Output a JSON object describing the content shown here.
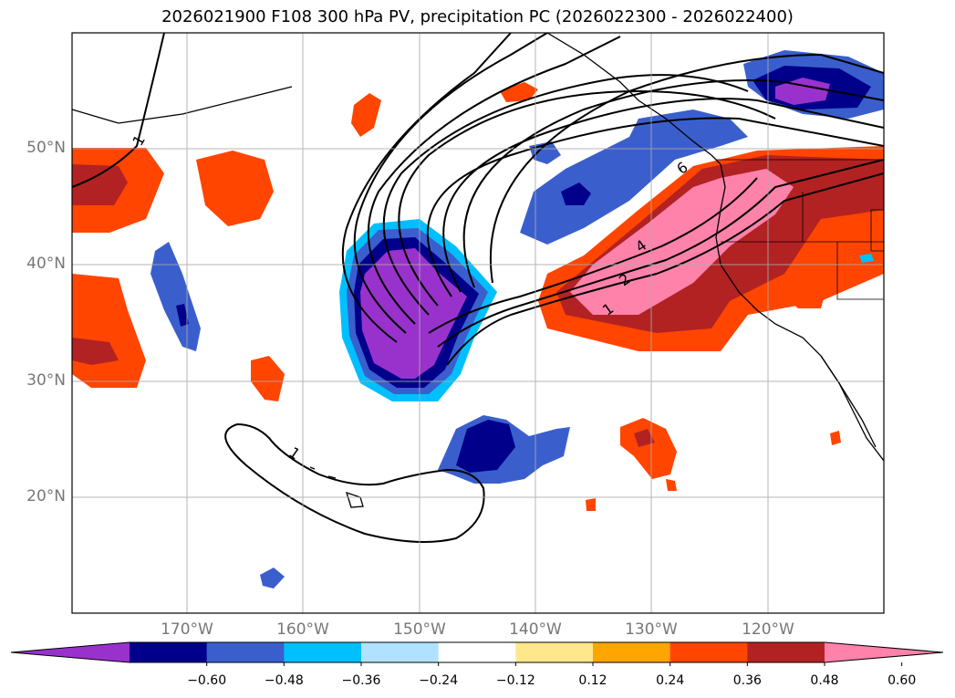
{
  "title": "2026021900 F108 300 hPa PV, precipitation PC (2026022300 - 2026022400)",
  "map": {
    "extent": {
      "lon_min": -180,
      "lon_max": -110,
      "lat_min": 10,
      "lat_max": 60
    },
    "gridlines": true,
    "lat_labels": [
      "20°N",
      "30°N",
      "40°N",
      "50°N"
    ],
    "lon_labels": [
      "170°W",
      "160°W",
      "150°W",
      "140°W",
      "130°W",
      "120°W"
    ],
    "contour_labels": [
      "1",
      "1",
      "1",
      "2",
      "4",
      "6"
    ],
    "fill_colors": {
      "neg_deep": "#9932cc",
      "neg_strong": "#00008b",
      "neg_mid": "#3a5fcd",
      "neg_light": "#00bfff",
      "neg_faint": "#b0e2ff",
      "pos_faint": "#ffe78c",
      "pos_light": "#ffa500",
      "pos_mid": "#ff4500",
      "pos_strong": "#b22222",
      "pos_deep": "#ff82ab"
    }
  },
  "colorbar": {
    "ticks": [
      "−0.60",
      "−0.48",
      "−0.36",
      "−0.24",
      "−0.12",
      "0.12",
      "0.24",
      "0.36",
      "0.48",
      "0.60"
    ],
    "colors": [
      "#9932cc",
      "#00008b",
      "#3a5fcd",
      "#00bfff",
      "#b0e2ff",
      "#ffffff",
      "#ffe78c",
      "#ffa500",
      "#ff4500",
      "#b22222",
      "#ff82ab"
    ],
    "extend": "both"
  }
}
